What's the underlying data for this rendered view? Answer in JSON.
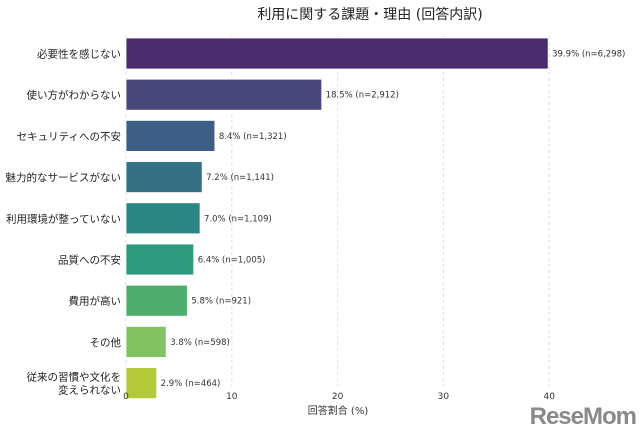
{
  "chart_data": {
    "type": "bar",
    "orientation": "horizontal",
    "title": "利用に関する課題・理由 (回答内訳)",
    "xlabel": "回答割合 (%)",
    "ylabel": "",
    "xlim": [
      0,
      42
    ],
    "xticks": [
      0,
      10,
      20,
      30,
      40
    ],
    "grid": "vertical dashed",
    "categories": [
      "必要性を感じない",
      "使い方がわからない",
      "セキュリティへの不安",
      "魅力的なサービスがない",
      "利用環境が整っていない",
      "品質への不安",
      "費用が高い",
      "その他",
      "従来の習慣や文化を\n変えられない"
    ],
    "values": [
      39.9,
      18.5,
      8.4,
      7.2,
      7.0,
      6.4,
      5.8,
      3.8,
      2.9
    ],
    "data_labels": [
      "39.9% (n=6,298)",
      "18.5% (n=2,912)",
      "8.4% (n=1,321)",
      "7.2% (n=1,141)",
      "7.0% (n=1,109)",
      "6.4% (n=1,005)",
      "5.8% (n=921)",
      "3.8% (n=598)",
      "2.9% (n=464)"
    ],
    "colors": [
      "#482c6b",
      "#49487c",
      "#3e5e86",
      "#357185",
      "#2b8582",
      "#2e9a7b",
      "#4fae6e",
      "#82c263",
      "#b3c93a"
    ]
  },
  "watermark": "ReseMom"
}
